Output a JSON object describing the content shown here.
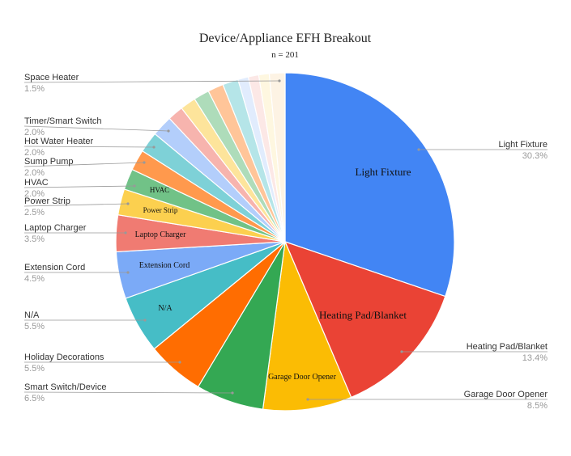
{
  "chart_data": {
    "type": "pie",
    "title": "Device/Appliance EFH Breakout",
    "subtitle": "n = 201",
    "slices": [
      {
        "label": "Light Fixture",
        "value": 30.3,
        "pct_label": "30.3%",
        "color": "#4285F4",
        "inside_label": "Light Fixture"
      },
      {
        "label": "Heating Pad/Blanket",
        "value": 13.4,
        "pct_label": "13.4%",
        "color": "#EA4335",
        "inside_label": "Heating Pad/Blanket"
      },
      {
        "label": "Garage Door Opener",
        "value": 8.5,
        "pct_label": "8.5%",
        "color": "#FBBC04",
        "inside_label": "Garage Door Opener"
      },
      {
        "label": "Smart Switch/Device",
        "value": 6.5,
        "pct_label": "6.5%",
        "color": "#34A853",
        "inside_label": ""
      },
      {
        "label": "Holiday Decorations",
        "value": 5.5,
        "pct_label": "5.5%",
        "color": "#FF6D01",
        "inside_label": ""
      },
      {
        "label": "N/A",
        "value": 5.5,
        "pct_label": "5.5%",
        "color": "#46BDC6",
        "inside_label": "N/A"
      },
      {
        "label": "Extension Cord",
        "value": 4.5,
        "pct_label": "4.5%",
        "color": "#7BAAF7",
        "inside_label": "Extension Cord"
      },
      {
        "label": "Laptop Charger",
        "value": 3.5,
        "pct_label": "3.5%",
        "color": "#F07B72",
        "inside_label": "Laptop Charger"
      },
      {
        "label": "Power Strip",
        "value": 2.5,
        "pct_label": "2.5%",
        "color": "#FCD04F",
        "inside_label": "Power Strip"
      },
      {
        "label": "HVAC",
        "value": 2.0,
        "pct_label": "2.0%",
        "color": "#71C287",
        "inside_label": "HVAC"
      },
      {
        "label": "Sump Pump",
        "value": 2.0,
        "pct_label": "2.0%",
        "color": "#FF994D",
        "inside_label": ""
      },
      {
        "label": "Hot Water Heater",
        "value": 2.0,
        "pct_label": "2.0%",
        "color": "#7ED1D7",
        "inside_label": ""
      },
      {
        "label": "Timer/Smart Switch",
        "value": 2.0,
        "pct_label": "2.0%",
        "color": "#B3CEFB",
        "inside_label": ""
      },
      {
        "label": "",
        "value": 1.5,
        "pct_label": "",
        "color": "#F7B4AE",
        "inside_label": ""
      },
      {
        "label": "",
        "value": 1.5,
        "pct_label": "",
        "color": "#FDE49B",
        "inside_label": ""
      },
      {
        "label": "",
        "value": 1.5,
        "pct_label": "",
        "color": "#AEDCBA",
        "inside_label": ""
      },
      {
        "label": "",
        "value": 1.5,
        "pct_label": "",
        "color": "#FFC599",
        "inside_label": ""
      },
      {
        "label": "",
        "value": 1.5,
        "pct_label": "",
        "color": "#B5E5E8",
        "inside_label": ""
      },
      {
        "label": "",
        "value": 1.0,
        "pct_label": "",
        "color": "#E1ECFD",
        "inside_label": ""
      },
      {
        "label": "",
        "value": 1.0,
        "pct_label": "",
        "color": "#FCE8E6",
        "inside_label": ""
      },
      {
        "label": "",
        "value": 1.0,
        "pct_label": "",
        "color": "#FEF7E0",
        "inside_label": ""
      },
      {
        "label": "Space Heater",
        "value": 1.5,
        "pct_label": "1.5%",
        "color": "#FDF3E4",
        "inside_label": ""
      }
    ],
    "legend": "none"
  }
}
